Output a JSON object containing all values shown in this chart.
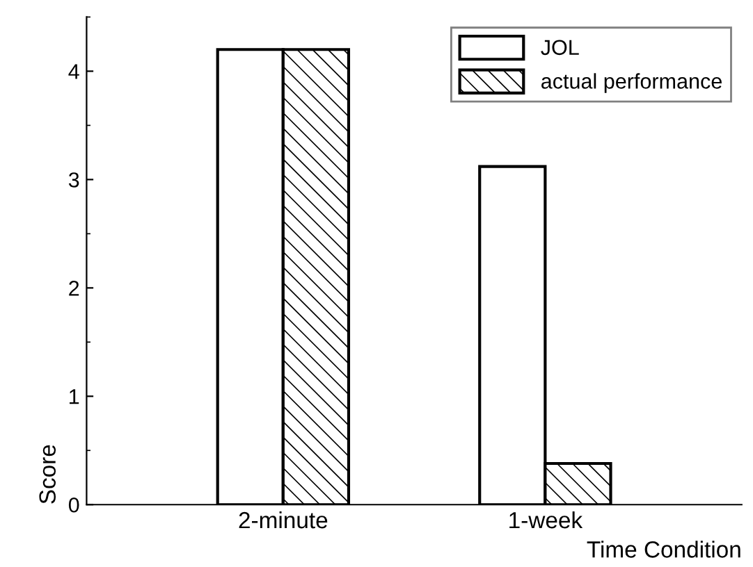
{
  "chart_data": {
    "type": "bar",
    "xlabel": "Time Condition",
    "ylabel": "Score",
    "categories": [
      "2-minute",
      "1-week"
    ],
    "series": [
      {
        "name": "JOL",
        "color": "#ffffff",
        "values": [
          4.2,
          3.12
        ]
      },
      {
        "name": "actual performance",
        "color": "#000000",
        "values": [
          4.2,
          0.38
        ]
      }
    ],
    "ylim": [
      0,
      4.5
    ],
    "yticks": [
      0,
      1,
      2,
      3,
      4
    ],
    "grid": false,
    "legend": "top right"
  }
}
